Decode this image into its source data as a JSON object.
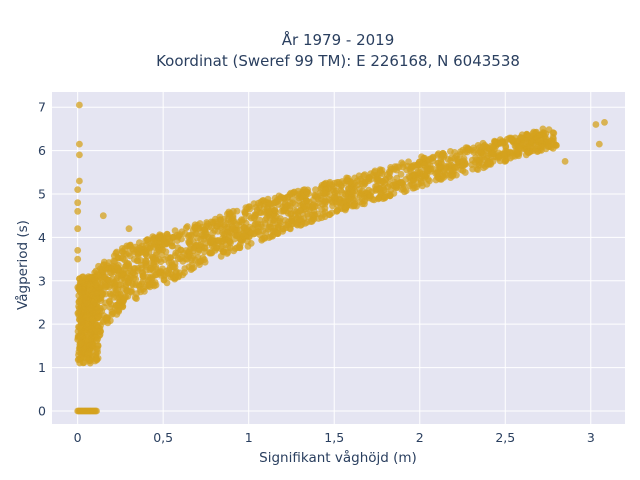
{
  "chart_data": {
    "type": "scatter",
    "title": "År 1979 - 2019",
    "subtitle": "Koordinat (Sweref 99 TM): E 226168, N 6043538",
    "xlabel": "Signifikant våghöjd (m)",
    "ylabel": "Vågperiod (s)",
    "xlim": [
      -0.15,
      3.2
    ],
    "ylim": [
      -0.3,
      7.35
    ],
    "x_ticks": [
      0,
      0.5,
      1,
      1.5,
      2,
      2.5,
      3
    ],
    "x_tick_labels": [
      "0",
      "0,5",
      "1",
      "1,5",
      "2",
      "2,5",
      "3"
    ],
    "y_ticks": [
      0,
      1,
      2,
      3,
      4,
      5,
      6,
      7
    ],
    "y_tick_labels": [
      "0",
      "1",
      "2",
      "3",
      "4",
      "5",
      "6",
      "7"
    ],
    "grid": true,
    "legend": "none",
    "marker_color": "#d4a21d",
    "plot_background": "#e5e5f2",
    "trend": {
      "x": [
        0.05,
        0.1,
        0.2,
        0.3,
        0.5,
        0.75,
        1.0,
        1.25,
        1.5,
        1.75,
        2.0,
        2.25,
        2.5,
        2.75
      ],
      "y_low": [
        1.2,
        1.6,
        2.1,
        2.5,
        2.9,
        3.4,
        3.8,
        4.2,
        4.55,
        4.85,
        5.15,
        5.45,
        5.75,
        6.05
      ],
      "y_high": [
        3.0,
        3.3,
        3.6,
        3.85,
        4.1,
        4.4,
        4.75,
        5.05,
        5.3,
        5.55,
        5.85,
        6.05,
        6.3,
        6.5
      ]
    },
    "outliers": [
      {
        "x": 0.01,
        "y": 7.05
      },
      {
        "x": 0.01,
        "y": 6.15
      },
      {
        "x": 0.01,
        "y": 5.9
      },
      {
        "x": 0.01,
        "y": 5.3
      },
      {
        "x": 0.0,
        "y": 5.1
      },
      {
        "x": 0.0,
        "y": 4.8
      },
      {
        "x": 0.0,
        "y": 4.6
      },
      {
        "x": 0.0,
        "y": 4.2
      },
      {
        "x": 0.0,
        "y": 3.7
      },
      {
        "x": 0.0,
        "y": 3.5
      },
      {
        "x": 0.15,
        "y": 4.5
      },
      {
        "x": 0.3,
        "y": 4.2
      },
      {
        "x": 0.56,
        "y": 4.0
      },
      {
        "x": 3.03,
        "y": 6.6
      },
      {
        "x": 3.05,
        "y": 6.15
      },
      {
        "x": 3.08,
        "y": 6.65
      },
      {
        "x": 2.85,
        "y": 5.75
      },
      {
        "x": 2.78,
        "y": 6.05
      },
      {
        "x": 2.72,
        "y": 6.5
      },
      {
        "x": 2.0,
        "y": 5.5
      },
      {
        "x": 1.6,
        "y": 5.1
      }
    ],
    "zero_band": {
      "x_min": 0.0,
      "x_max": 0.11,
      "y": 0
    }
  }
}
